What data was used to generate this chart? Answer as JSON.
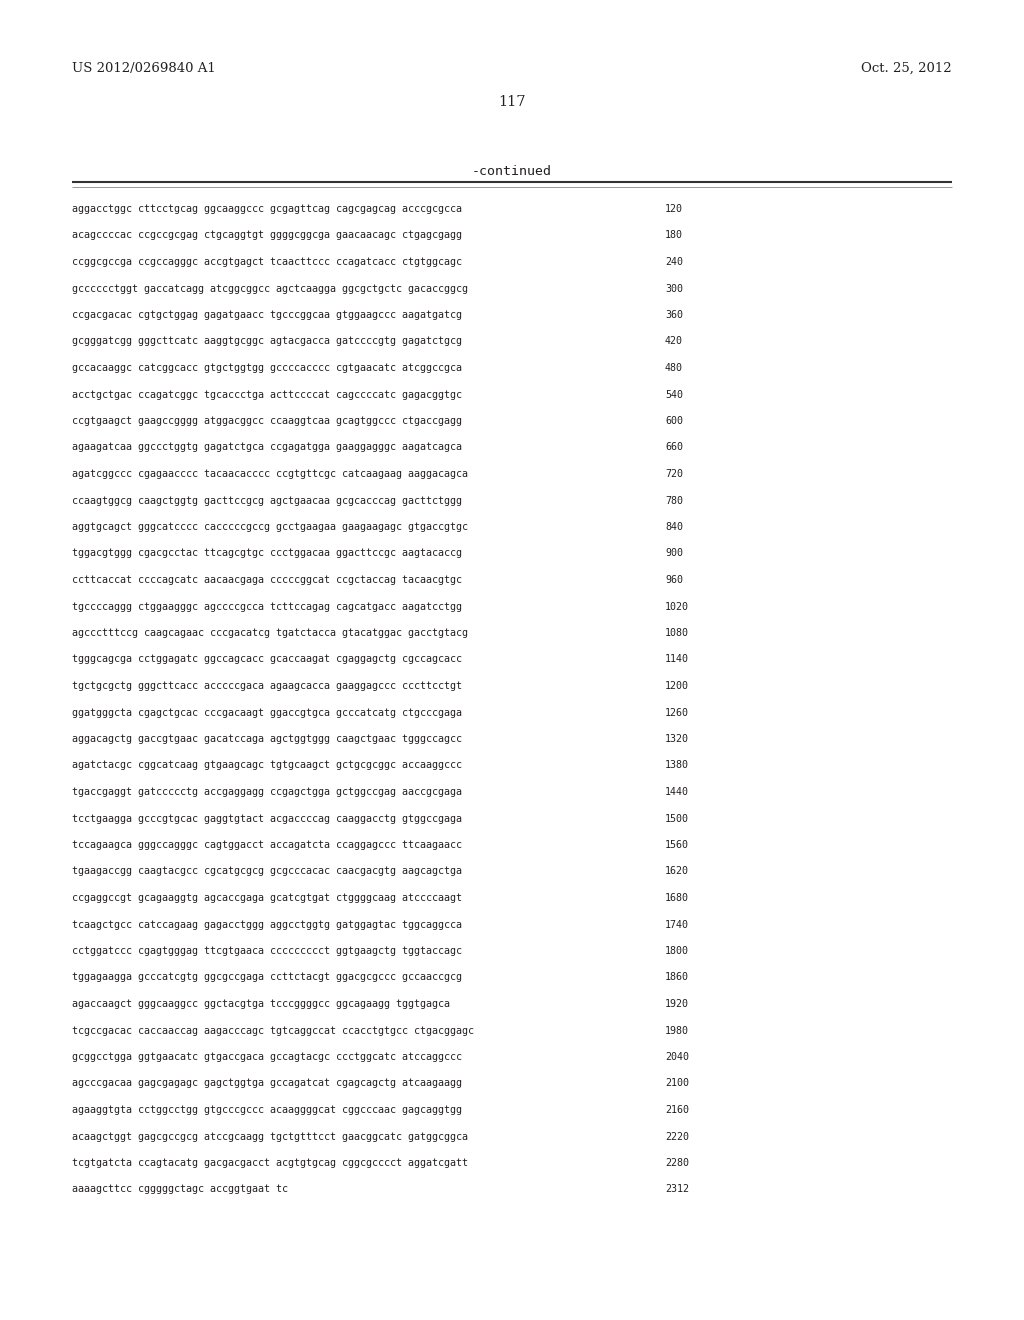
{
  "header_left": "US 2012/0269840 A1",
  "header_right": "Oct. 25, 2012",
  "page_number": "117",
  "continued_label": "-continued",
  "background_color": "#ffffff",
  "text_color": "#231f20",
  "font_size_header": 9.5,
  "font_size_page": 10.5,
  "font_size_continued": 9.5,
  "font_size_sequence": 7.2,
  "sequence_lines": [
    [
      "aggacctggc cttcctgcag ggcaaggccc gcgagttcag cagcgagcag acccgcgcca",
      "120"
    ],
    [
      "acagccccac ccgccgcgag ctgcaggtgt ggggcggcga gaacaacagc ctgagcgagg",
      "180"
    ],
    [
      "ccggcgccga ccgccagggc accgtgagct tcaacttccc ccagatcacc ctgtggcagc",
      "240"
    ],
    [
      "gcccccctggt gaccatcagg atcggcggcc agctcaagga ggcgctgctc gacaccggcg",
      "300"
    ],
    [
      "ccgacgacac cgtgctggag gagatgaacc tgcccggcaa gtggaagccc aagatgatcg",
      "360"
    ],
    [
      "gcgggatcgg gggcttcatc aaggtgcggc agtacgacca gatccccgtg gagatctgcg",
      "420"
    ],
    [
      "gccacaaggc catcggcacc gtgctggtgg gccccacccc cgtgaacatc atcggccgca",
      "480"
    ],
    [
      "acctgctgac ccagatcggc tgcaccctga acttccccat cagccccatc gagacggtgc",
      "540"
    ],
    [
      "ccgtgaagct gaagccgggg atggacggcc ccaaggtcaa gcagtggccc ctgaccgagg",
      "600"
    ],
    [
      "agaagatcaa ggccctggtg gagatctgca ccgagatgga gaaggagggc aagatcagca",
      "660"
    ],
    [
      "agatcggccc cgagaacccc tacaacacccc ccgtgttcgc catcaagaag aaggacagca",
      "720"
    ],
    [
      "ccaagtggcg caagctggtg gacttccgcg agctgaacaa gcgcacccag gacttctggg",
      "780"
    ],
    [
      "aggtgcagct gggcatcccc cacccccgccg gcctgaagaa gaagaagagc gtgaccgtgc",
      "840"
    ],
    [
      "tggacgtggg cgacgcctac ttcagcgtgc ccctggacaa ggacttccgc aagtacaccg",
      "900"
    ],
    [
      "ccttcaccat ccccagcatc aacaacgaga cccccggcat ccgctaccag tacaacgtgc",
      "960"
    ],
    [
      "tgccccaggg ctggaagggc agccccgcca tcttccagag cagcatgacc aagatcctgg",
      "1020"
    ],
    [
      "agccctttccg caagcagaac cccgacatcg tgatctacca gtacatggac gacctgtacg",
      "1080"
    ],
    [
      "tgggcagcga cctggagatc ggccagcacc gcaccaagat cgaggagctg cgccagcacc",
      "1140"
    ],
    [
      "tgctgcgctg gggcttcacc acccccgaca agaagcacca gaaggagccc cccttcctgt",
      "1200"
    ],
    [
      "ggatgggcta cgagctgcac cccgacaagt ggaccgtgca gcccatcatg ctgcccgaga",
      "1260"
    ],
    [
      "aggacagctg gaccgtgaac gacatccaga agctggtggg caagctgaac tgggccagcc",
      "1320"
    ],
    [
      "agatctacgc cggcatcaag gtgaagcagc tgtgcaagct gctgcgcggc accaaggccc",
      "1380"
    ],
    [
      "tgaccgaggt gatccccctg accgaggagg ccgagctgga gctggccgag aaccgcgaga",
      "1440"
    ],
    [
      "tcctgaagga gcccgtgcac gaggtgtact acgaccccag caaggacctg gtggccgaga",
      "1500"
    ],
    [
      "tccagaagca gggccagggc cagtggacct accagatcta ccaggagccc ttcaagaacc",
      "1560"
    ],
    [
      "tgaagaccgg caagtacgcc cgcatgcgcg gcgcccacac caacgacgtg aagcagctga",
      "1620"
    ],
    [
      "ccgaggccgt gcagaaggtg agcaccgaga gcatcgtgat ctggggcaag atccccaagt",
      "1680"
    ],
    [
      "tcaagctgcc catccagaag gagacctggg aggcctggtg gatggagtac tggcaggcca",
      "1740"
    ],
    [
      "cctggatccc cgagtgggag ttcgtgaaca ccccccccct ggtgaagctg tggtaccagc",
      "1800"
    ],
    [
      "tggagaagga gcccatcgtg ggcgccgaga ccttctacgt ggacgcgccc gccaaccgcg",
      "1860"
    ],
    [
      "agaccaagct gggcaaggcc ggctacgtga tcccggggcc ggcagaagg tggtgagca",
      "1920"
    ],
    [
      "tcgccgacac caccaaccag aagacccagc tgtcaggccat ccacctgtgcc ctgacggagc",
      "1980"
    ],
    [
      "gcggcctgga ggtgaacatc gtgaccgaca gccagtacgc ccctggcatc atccaggccc",
      "2040"
    ],
    [
      "agcccgacaa gagcgagagc gagctggtga gccagatcat cgagcagctg atcaagaagg",
      "2100"
    ],
    [
      "agaaggtgta cctggcctgg gtgcccgccc acaaggggcat cggcccaac gagcaggtgg",
      "2160"
    ],
    [
      "acaagctggt gagcgccgcg atccgcaagg tgctgtttcct gaacggcatc gatggcggca",
      "2220"
    ],
    [
      "tcgtgatcta ccagtacatg gacgacgacct acgtgtgcag cggcgcccct aggatcgatt",
      "2280"
    ],
    [
      "aaaagcttcc cgggggctagc accggtgaat tc",
      "2312"
    ]
  ]
}
